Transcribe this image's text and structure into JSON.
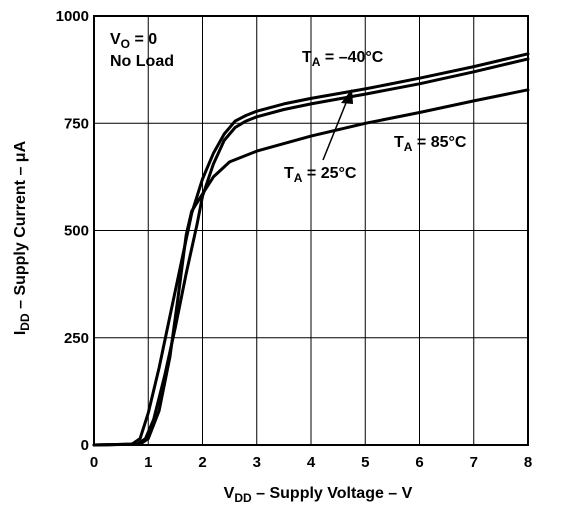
{
  "chart_data": {
    "type": "line",
    "title": "",
    "xlabel": {
      "main": "V",
      "sub": "DD",
      "rest": " – Supply Voltage – V"
    },
    "ylabel": {
      "main": "I",
      "sub": "DD",
      "rest": " – Supply Current – μA"
    },
    "xlim": [
      0,
      8
    ],
    "ylim": [
      0,
      1000
    ],
    "x_ticks": [
      0,
      1,
      2,
      3,
      4,
      5,
      6,
      7,
      8
    ],
    "y_ticks": [
      0,
      250,
      500,
      750,
      1000
    ],
    "x_tick_labels": [
      "0",
      "1",
      "2",
      "3",
      "4",
      "5",
      "6",
      "7",
      "8"
    ],
    "y_tick_labels": [
      "0",
      "250",
      "500",
      "750",
      "1000"
    ],
    "grid": true,
    "line_color": "#000000",
    "series": [
      {
        "label_main": "T",
        "label_sub": "A",
        "label_rest": " = –40°C",
        "points": [
          [
            0,
            0
          ],
          [
            0.7,
            2
          ],
          [
            0.85,
            15
          ],
          [
            1.0,
            75
          ],
          [
            1.2,
            180
          ],
          [
            1.4,
            300
          ],
          [
            1.6,
            420
          ],
          [
            1.8,
            540
          ],
          [
            2.0,
            620
          ],
          [
            2.2,
            680
          ],
          [
            2.4,
            725
          ],
          [
            2.6,
            755
          ],
          [
            2.8,
            768
          ],
          [
            3.0,
            778
          ],
          [
            3.5,
            795
          ],
          [
            4,
            808
          ],
          [
            5,
            830
          ],
          [
            6,
            855
          ],
          [
            7,
            882
          ],
          [
            8,
            912
          ]
        ]
      },
      {
        "label_main": "T",
        "label_sub": "A",
        "label_rest": " = 25°C",
        "points": [
          [
            0,
            0
          ],
          [
            0.8,
            2
          ],
          [
            0.95,
            15
          ],
          [
            1.1,
            60
          ],
          [
            1.3,
            160
          ],
          [
            1.5,
            275
          ],
          [
            1.7,
            400
          ],
          [
            1.9,
            515
          ],
          [
            2.0,
            580
          ],
          [
            2.2,
            655
          ],
          [
            2.4,
            710
          ],
          [
            2.6,
            740
          ],
          [
            2.8,
            755
          ],
          [
            3.0,
            765
          ],
          [
            3.5,
            782
          ],
          [
            4,
            795
          ],
          [
            5,
            818
          ],
          [
            6,
            842
          ],
          [
            7,
            870
          ],
          [
            8,
            900
          ]
        ]
      },
      {
        "label_main": "T",
        "label_sub": "A",
        "label_rest": " = 85°C",
        "points": [
          [
            0,
            0
          ],
          [
            0.85,
            2
          ],
          [
            1.0,
            15
          ],
          [
            1.2,
            80
          ],
          [
            1.4,
            205
          ],
          [
            1.55,
            345
          ],
          [
            1.7,
            490
          ],
          [
            1.8,
            545
          ],
          [
            2.0,
            585
          ],
          [
            2.2,
            625
          ],
          [
            2.5,
            660
          ],
          [
            3.0,
            685
          ],
          [
            4,
            720
          ],
          [
            5,
            750
          ],
          [
            6,
            775
          ],
          [
            7,
            802
          ],
          [
            8,
            828
          ]
        ]
      }
    ],
    "annotations": [
      {
        "main": "V",
        "sub": "O",
        "rest": " = 0"
      },
      {
        "text": "No Load"
      }
    ]
  }
}
